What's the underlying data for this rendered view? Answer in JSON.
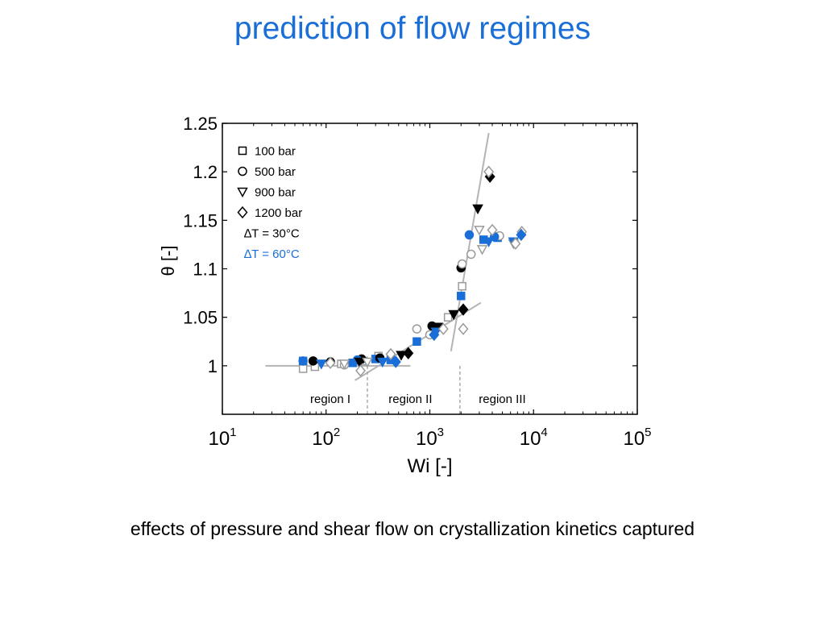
{
  "slide": {
    "title": "prediction of flow regimes",
    "caption": "effects of pressure and shear flow on crystallization kinetics captured"
  },
  "colors": {
    "title": "#1a6ed8",
    "dT30": "#000000",
    "dT60": "#1a6ed8",
    "fit_line": "#b4b4b4",
    "open_marker": "#9a9a9a"
  },
  "chart_data": {
    "type": "scatter",
    "xscale": "log",
    "xlim": [
      10,
      100000
    ],
    "ylim": [
      0.95,
      1.25
    ],
    "xlabel": "Wi [-]",
    "ylabel": "θ [-]",
    "x_ticks": [
      {
        "value": 10,
        "base": "10",
        "exp": "1"
      },
      {
        "value": 100,
        "base": "10",
        "exp": "2"
      },
      {
        "value": 1000,
        "base": "10",
        "exp": "3"
      },
      {
        "value": 10000,
        "base": "10",
        "exp": "4"
      },
      {
        "value": 100000,
        "base": "10",
        "exp": "5"
      }
    ],
    "y_ticks": [
      {
        "value": 1,
        "label": "1"
      },
      {
        "value": 1.05,
        "label": "1.05"
      },
      {
        "value": 1.1,
        "label": "1.1"
      },
      {
        "value": 1.15,
        "label": "1.15"
      },
      {
        "value": 1.2,
        "label": "1.2"
      },
      {
        "value": 1.25,
        "label": "1.25"
      }
    ],
    "grid": false,
    "legend_position": "top-left",
    "legend": [
      {
        "label": "100 bar",
        "marker": "square"
      },
      {
        "label": "500 bar",
        "marker": "circle"
      },
      {
        "label": "900 bar",
        "marker": "triangle-down"
      },
      {
        "label": "1200 bar",
        "marker": "diamond"
      },
      {
        "label": "∆T = 30°C",
        "color": "#000000"
      },
      {
        "label": "∆T = 60°C",
        "color": "#1a6ed8"
      }
    ],
    "regions": [
      {
        "label": "region I",
        "x_center": 110
      },
      {
        "label": "region II",
        "x_center": 650
      },
      {
        "label": "region III",
        "x_center": 5000
      }
    ],
    "boundaries": [
      250,
      1950
    ],
    "fit_lines": [
      {
        "from": [
          26,
          1.0
        ],
        "to": [
          650,
          1.0
        ]
      },
      {
        "from": [
          190,
          0.985
        ],
        "to": [
          3100,
          1.065
        ]
      },
      {
        "from": [
          1600,
          1.015
        ],
        "to": [
          3700,
          1.24
        ]
      }
    ],
    "series": [
      {
        "marker": "square",
        "dT": "30",
        "fill": "open",
        "color": "#9a9a9a",
        "points": [
          [
            60,
            0.997
          ],
          [
            78,
            0.999
          ],
          [
            140,
            1.002
          ],
          [
            230,
            1.005
          ],
          [
            320,
            1.01
          ],
          [
            1200,
            1.04
          ],
          [
            1500,
            1.05
          ],
          [
            2050,
            1.082
          ]
        ]
      },
      {
        "marker": "square",
        "dT": "60",
        "fill": "filled",
        "color": "#1a6ed8",
        "points": [
          [
            60,
            1.005
          ],
          [
            180,
            1.003
          ],
          [
            300,
            1.007
          ],
          [
            420,
            1.006
          ],
          [
            750,
            1.025
          ],
          [
            1150,
            1.04
          ],
          [
            2000,
            1.072
          ],
          [
            3300,
            1.13
          ],
          [
            4500,
            1.132
          ]
        ]
      },
      {
        "marker": "circle",
        "dT": "30",
        "fill": "filled",
        "color": "#000000",
        "points": [
          [
            75,
            1.005
          ],
          [
            110,
            1.004
          ],
          [
            220,
            1.007
          ],
          [
            330,
            1.008
          ],
          [
            1050,
            1.041
          ],
          [
            2000,
            1.101
          ]
        ]
      },
      {
        "marker": "circle",
        "dT": "30",
        "fill": "open",
        "color": "#9a9a9a",
        "points": [
          [
            150,
            1.001
          ],
          [
            750,
            1.038
          ],
          [
            1000,
            1.032
          ],
          [
            2050,
            1.105
          ],
          [
            2500,
            1.115
          ],
          [
            4700,
            1.134
          ]
        ]
      },
      {
        "marker": "circle",
        "dT": "60",
        "fill": "filled",
        "color": "#1a6ed8",
        "points": [
          [
            60,
            1.005
          ],
          [
            200,
            1.006
          ],
          [
            2400,
            1.135
          ],
          [
            4200,
            1.133
          ]
        ]
      },
      {
        "marker": "triangle-down",
        "dT": "30",
        "fill": "filled",
        "color": "#000000",
        "points": [
          [
            210,
            1.004
          ],
          [
            530,
            1.011
          ],
          [
            1200,
            1.04
          ],
          [
            1700,
            1.053
          ],
          [
            2900,
            1.162
          ]
        ]
      },
      {
        "marker": "triangle-down",
        "dT": "30",
        "fill": "open",
        "color": "#9a9a9a",
        "points": [
          [
            150,
            1.002
          ],
          [
            250,
            1.004
          ],
          [
            3000,
            1.14
          ],
          [
            3200,
            1.12
          ],
          [
            6400,
            1.126
          ]
        ]
      },
      {
        "marker": "triangle-down",
        "dT": "60",
        "fill": "filled",
        "color": "#1a6ed8",
        "points": [
          [
            90,
            1.002
          ],
          [
            350,
            1.004
          ],
          [
            1150,
            1.035
          ],
          [
            3700,
            1.128
          ],
          [
            6400,
            1.128
          ]
        ]
      },
      {
        "marker": "diamond",
        "dT": "30",
        "fill": "filled",
        "color": "#000000",
        "points": [
          [
            620,
            1.013
          ],
          [
            2100,
            1.058
          ],
          [
            3800,
            1.195
          ]
        ]
      },
      {
        "marker": "diamond",
        "dT": "30",
        "fill": "open",
        "color": "#9a9a9a",
        "points": [
          [
            110,
            1.003
          ],
          [
            215,
            0.995
          ],
          [
            420,
            1.012
          ],
          [
            1350,
            1.038
          ],
          [
            2100,
            1.038
          ],
          [
            3700,
            1.2
          ],
          [
            4000,
            1.14
          ],
          [
            6700,
            1.126
          ],
          [
            7700,
            1.138
          ]
        ]
      },
      {
        "marker": "diamond",
        "dT": "60",
        "fill": "filled",
        "color": "#1a6ed8",
        "points": [
          [
            470,
            1.004
          ],
          [
            1100,
            1.032
          ],
          [
            7600,
            1.135
          ]
        ]
      }
    ]
  }
}
